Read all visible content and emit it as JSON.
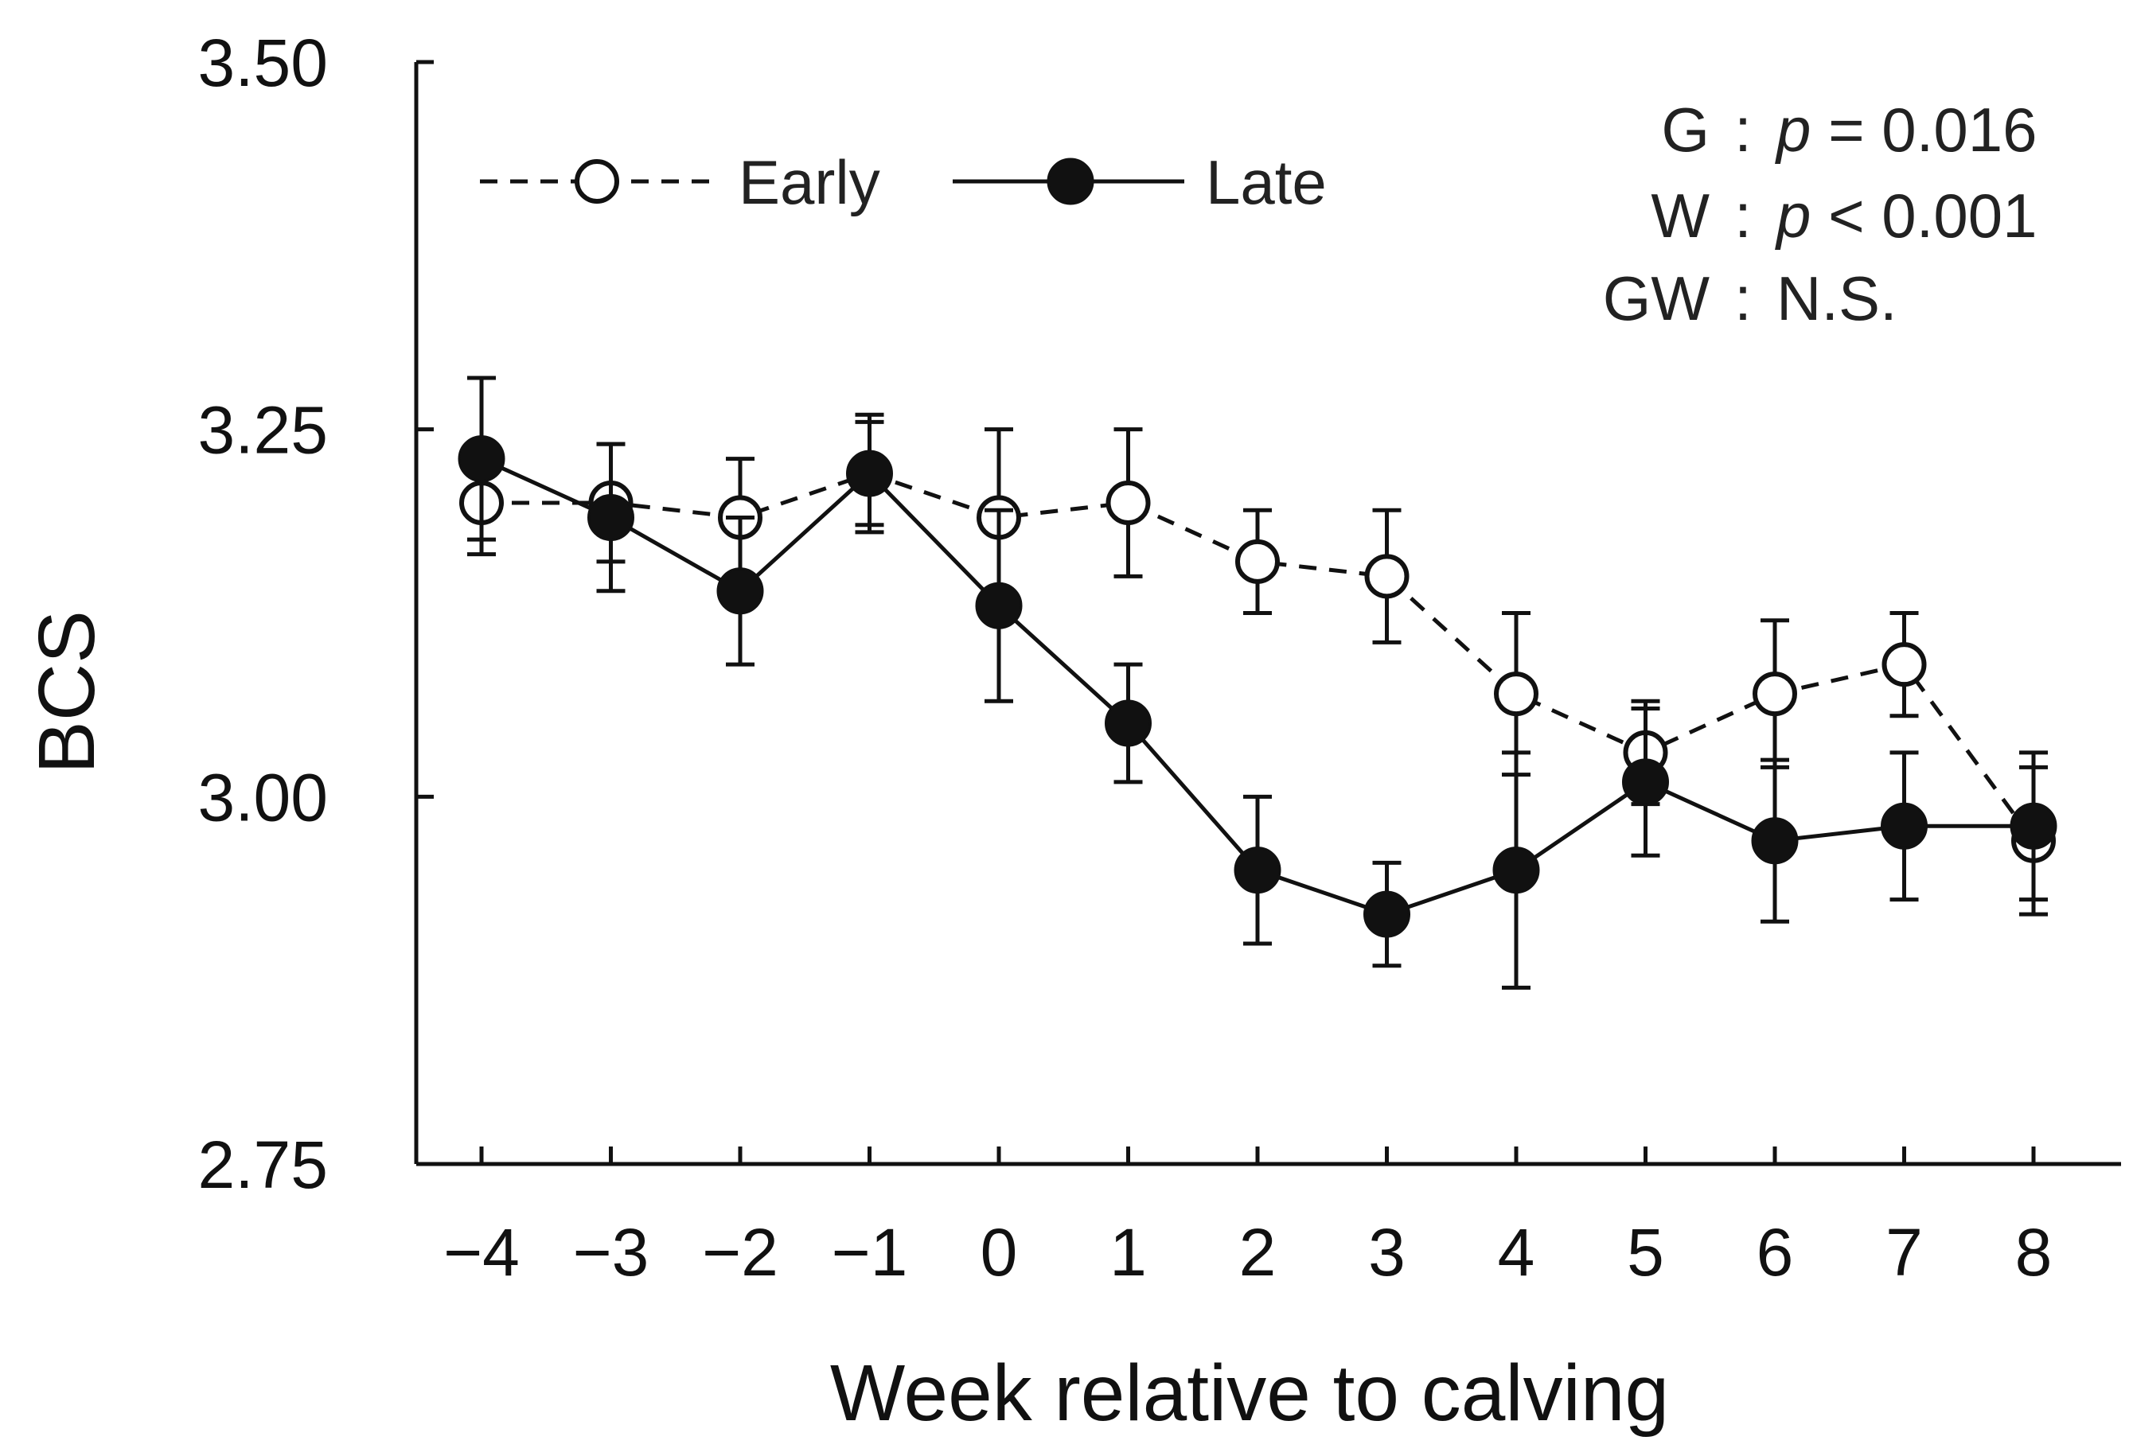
{
  "chart_data": {
    "type": "line",
    "title": "",
    "xlabel": "Week relative to calving",
    "ylabel": "BCS",
    "x": [
      -4,
      -3,
      -2,
      -1,
      0,
      1,
      2,
      3,
      4,
      5,
      6,
      7,
      8
    ],
    "x_tick_labels": [
      "−4",
      "−3",
      "−2",
      "−1",
      "0",
      "1",
      "2",
      "3",
      "4",
      "5",
      "6",
      "7",
      "8"
    ],
    "ylim": [
      2.75,
      3.5
    ],
    "y_ticks": [
      2.75,
      3.0,
      3.25,
      3.5
    ],
    "y_tick_labels": [
      "2.75",
      "3.00",
      "3.25",
      "3.50"
    ],
    "series": [
      {
        "name": "Early",
        "line_style": "dashed",
        "marker": "open-circle",
        "values": [
          3.2,
          3.2,
          3.19,
          3.22,
          3.19,
          3.2,
          3.16,
          3.15,
          3.07,
          3.03,
          3.07,
          3.09,
          2.97
        ],
        "errors": [
          0.035,
          0.04,
          0.04,
          0.04,
          0.06,
          0.05,
          0.035,
          0.045,
          0.055,
          0.035,
          0.05,
          0.035,
          0.05
        ]
      },
      {
        "name": "Late",
        "line_style": "solid",
        "marker": "filled-circle",
        "values": [
          3.23,
          3.19,
          3.14,
          3.22,
          3.13,
          3.05,
          2.95,
          2.92,
          2.95,
          3.01,
          2.97,
          2.98,
          2.98
        ],
        "errors": [
          0.055,
          0.05,
          0.05,
          0.035,
          0.065,
          0.04,
          0.05,
          0.035,
          0.08,
          0.05,
          0.055,
          0.05,
          0.05
        ]
      }
    ],
    "legend_position": "top-left",
    "annotations": [
      {
        "label": "G",
        "sep": ":",
        "p": "p",
        "rest": "= 0.016"
      },
      {
        "label": "W",
        "sep": ":",
        "p": "p",
        "rest": "< 0.001"
      },
      {
        "label": "GW",
        "sep": ":",
        "p": "",
        "rest": "N.S."
      }
    ]
  }
}
